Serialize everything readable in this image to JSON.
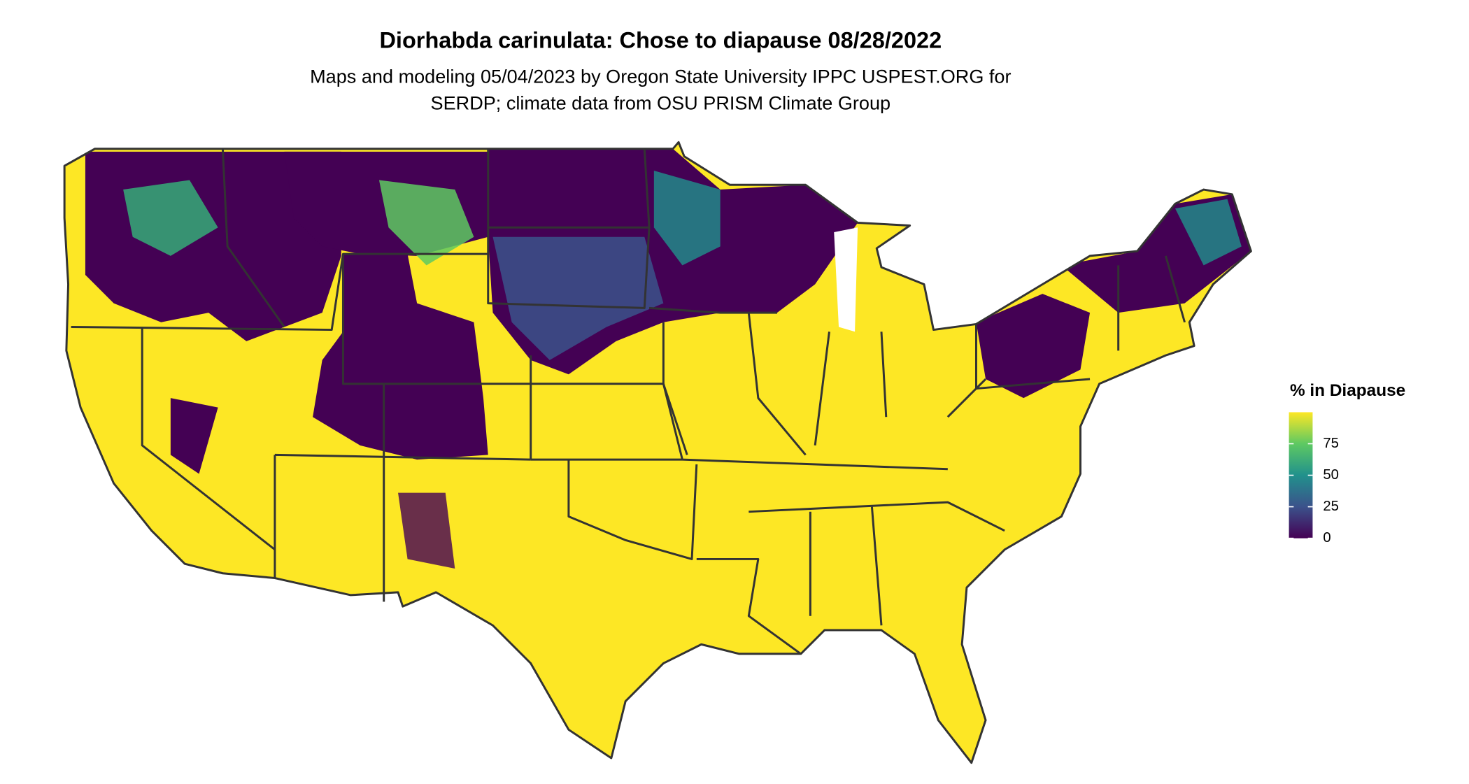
{
  "title": "Diorhabda carinulata: Chose to diapause 08/28/2022",
  "subtitle": [
    "Maps and modeling 05/04/2023 by Oregon State University IPPC USPEST.ORG for",
    "SERDP; climate data from OSU PRISM Climate Group"
  ],
  "legend": {
    "title": "% in Diapause",
    "lim": [
      0,
      100
    ],
    "ticks": [
      0,
      25,
      50,
      75
    ],
    "colors": [
      "#440154",
      "#3b528b",
      "#21918c",
      "#5ec962",
      "#fde725"
    ]
  }
}
